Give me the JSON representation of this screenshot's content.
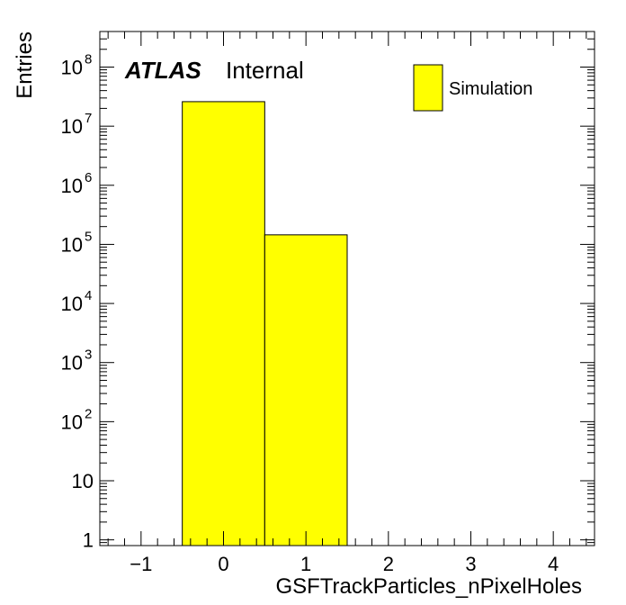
{
  "chart_data": {
    "type": "bar",
    "subtype": "histogram",
    "xlabel": "GSFTrackParticles_nPixelHoles",
    "ylabel": "Entries",
    "xlim": [
      -1.5,
      4.5
    ],
    "ylim": [
      0.8,
      400000000
    ],
    "y_scale": "log",
    "grid": false,
    "x_ticks": [
      {
        "value": -1,
        "label": "−1"
      },
      {
        "value": 0,
        "label": "0"
      },
      {
        "value": 1,
        "label": "1"
      },
      {
        "value": 2,
        "label": "2"
      },
      {
        "value": 3,
        "label": "3"
      },
      {
        "value": 4,
        "label": "4"
      }
    ],
    "y_ticks": [
      {
        "value": 1,
        "base": "1",
        "exp": ""
      },
      {
        "value": 10,
        "base": "10",
        "exp": ""
      },
      {
        "value": 100,
        "base": "10",
        "exp": "2"
      },
      {
        "value": 1000,
        "base": "10",
        "exp": "3"
      },
      {
        "value": 10000,
        "base": "10",
        "exp": "4"
      },
      {
        "value": 100000,
        "base": "10",
        "exp": "5"
      },
      {
        "value": 1000000,
        "base": "10",
        "exp": "6"
      },
      {
        "value": 10000000,
        "base": "10",
        "exp": "7"
      },
      {
        "value": 100000000,
        "base": "10",
        "exp": "8"
      }
    ],
    "bins": [
      {
        "low": -0.5,
        "high": 0.5,
        "value": 26000000
      },
      {
        "low": 0.5,
        "high": 1.5,
        "value": 145000
      }
    ],
    "fill_color": "#ffff00",
    "series": [
      {
        "name": "Simulation",
        "color": "#ffff00"
      }
    ],
    "legend_position": "top-right",
    "annotation": {
      "experiment": "ATLAS",
      "status": "Internal"
    }
  }
}
